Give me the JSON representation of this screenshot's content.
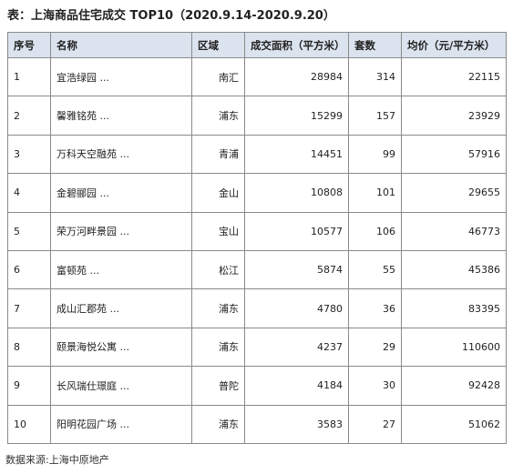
{
  "title": "表：上海商品住宅成交 TOP10（2020.9.14-2020.9.20）",
  "table": {
    "header": [
      "序号",
      "名称",
      "区域",
      "成交面积（平方米）",
      "套数",
      "均价（元/平方米）"
    ],
    "rows": [
      [
        1,
        "宜浩绿园 ...",
        "南汇",
        28984,
        314,
        22115
      ],
      [
        2,
        "馨雅铭苑 ...",
        "浦东",
        15299,
        157,
        23929
      ],
      [
        3,
        "万科天空融苑 ...",
        "青浦",
        14451,
        99,
        57916
      ],
      [
        4,
        "金碧郦园 ...",
        "金山",
        10808,
        101,
        29655
      ],
      [
        5,
        "荣万河畔景园 ...",
        "宝山",
        10577,
        106,
        46773
      ],
      [
        6,
        "富顿苑 ...",
        "松江",
        5874,
        55,
        45386
      ],
      [
        7,
        "成山汇郡苑 ...",
        "浦东",
        4780,
        36,
        83395
      ],
      [
        8,
        "颐景海悦公寓 ...",
        "浦东",
        4237,
        29,
        110600
      ],
      [
        9,
        "长风瑞仕璟庭 ...",
        "普陀",
        4184,
        30,
        92428
      ],
      [
        10,
        "阳明花园广场 ...",
        "浦东",
        3583,
        27,
        51062
      ]
    ]
  },
  "source": "数据来源:上海中原地产"
}
